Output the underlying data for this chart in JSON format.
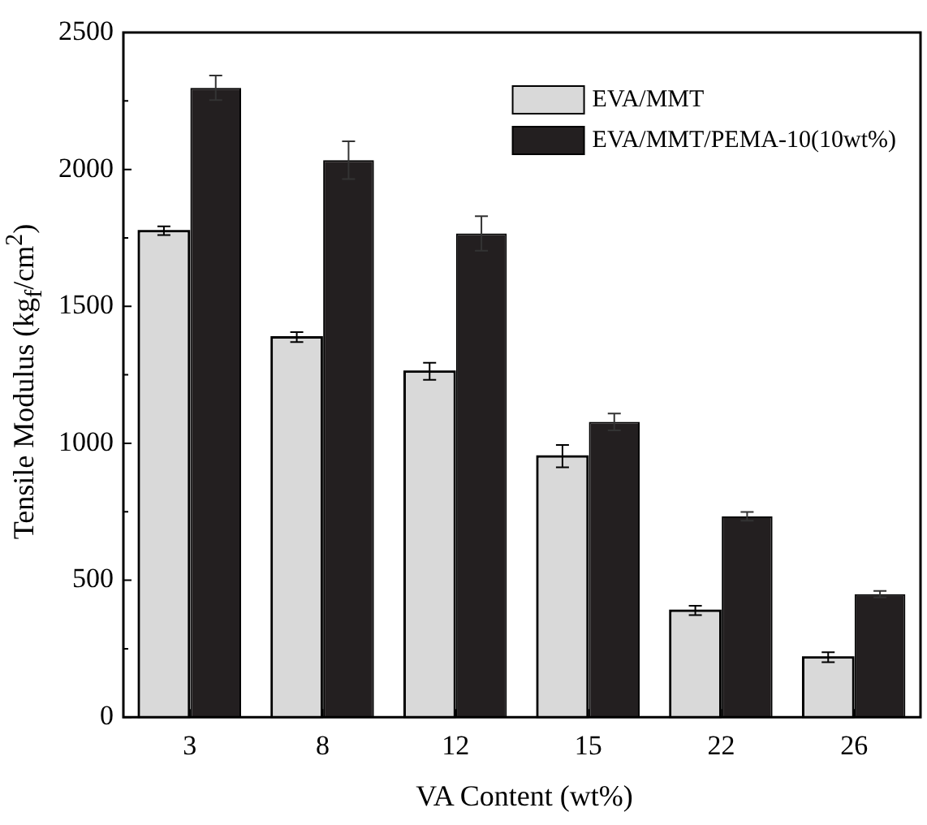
{
  "chart_data": {
    "type": "bar",
    "xlabel": "VA Content (wt%)",
    "ylabel": "Tensile Modulus (kg$_{f}$/cm$^{2}$)",
    "categories": [
      "3",
      "8",
      "12",
      "15",
      "22",
      "26"
    ],
    "series": [
      {
        "name": "EVA/MMT",
        "color": "#d9d9d9",
        "values": [
          1776,
          1388,
          1263,
          953,
          390,
          219
        ],
        "errors": [
          16,
          18,
          31,
          41,
          17,
          18
        ]
      },
      {
        "name": "EVA/MMT/PEMA-10(10wt%)",
        "color": "#231f20",
        "values": [
          2298,
          2034,
          1766,
          1078,
          733,
          449
        ],
        "errors": [
          45,
          69,
          63,
          31,
          16,
          12
        ]
      }
    ],
    "ylim": [
      0,
      2500
    ],
    "yticks": [
      0,
      {
        "value": 250,
        "label": null
      },
      500,
      {
        "value": 750,
        "label": null
      },
      1000,
      {
        "value": 1250,
        "label": null
      },
      1500,
      {
        "value": 1750,
        "label": null
      },
      2000,
      {
        "value": 2250,
        "label": null
      },
      2500
    ],
    "grid": false,
    "legend": "top right"
  }
}
